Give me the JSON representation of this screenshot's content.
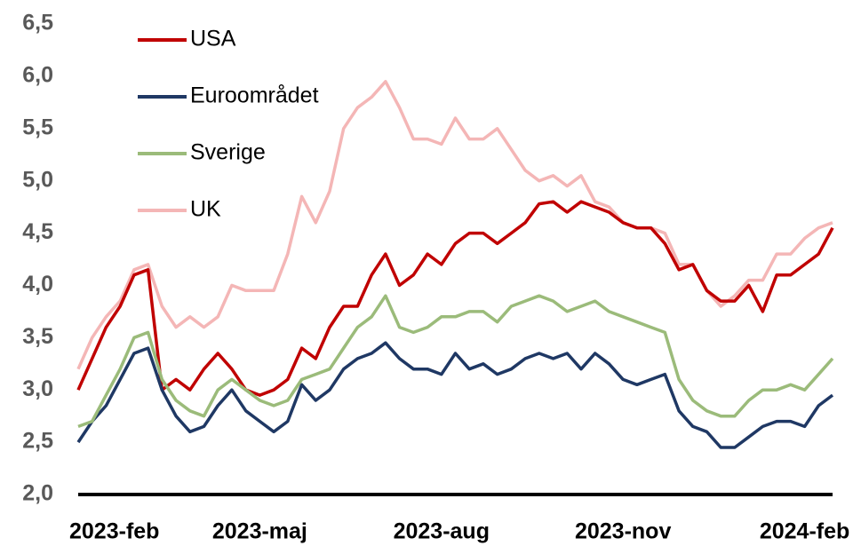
{
  "chart_data": {
    "type": "line",
    "categories": [
      "2023-feb",
      null,
      null,
      null,
      null,
      null,
      null,
      null,
      null,
      null,
      null,
      null,
      null,
      "2023-maj",
      null,
      null,
      null,
      null,
      null,
      null,
      null,
      null,
      null,
      null,
      null,
      null,
      "2023-aug",
      null,
      null,
      null,
      null,
      null,
      null,
      null,
      null,
      null,
      null,
      null,
      null,
      "2023-nov",
      null,
      null,
      null,
      null,
      null,
      null,
      null,
      null,
      null,
      null,
      null,
      null,
      "2024-feb",
      null,
      null
    ],
    "series": [
      {
        "name": "USA",
        "color": "#c00000",
        "values": [
          3.0,
          3.3,
          3.6,
          3.8,
          4.1,
          4.15,
          3.0,
          3.1,
          3.0,
          3.2,
          3.35,
          3.2,
          3.0,
          2.95,
          3.0,
          3.1,
          3.4,
          3.3,
          3.6,
          3.8,
          3.8,
          4.1,
          4.3,
          4.0,
          4.1,
          4.3,
          4.2,
          4.4,
          4.5,
          4.5,
          4.4,
          4.5,
          4.6,
          4.78,
          4.8,
          4.7,
          4.8,
          4.75,
          4.7,
          4.6,
          4.55,
          4.55,
          4.4,
          4.15,
          4.2,
          3.95,
          3.85,
          3.85,
          4.0,
          3.75,
          4.1,
          4.1,
          4.2,
          4.3,
          4.55
        ]
      },
      {
        "name": "Euroområdet",
        "color": "#1f3864",
        "values": [
          2.5,
          2.7,
          2.85,
          3.1,
          3.35,
          3.4,
          3.0,
          2.75,
          2.6,
          2.65,
          2.85,
          3.0,
          2.8,
          2.7,
          2.6,
          2.7,
          3.05,
          2.9,
          3.0,
          3.2,
          3.3,
          3.35,
          3.45,
          3.3,
          3.2,
          3.2,
          3.15,
          3.35,
          3.2,
          3.25,
          3.15,
          3.2,
          3.3,
          3.35,
          3.3,
          3.35,
          3.2,
          3.35,
          3.25,
          3.1,
          3.05,
          3.1,
          3.15,
          2.8,
          2.65,
          2.6,
          2.45,
          2.45,
          2.55,
          2.65,
          2.7,
          2.7,
          2.65,
          2.85,
          2.95
        ]
      },
      {
        "name": "Sverige",
        "color": "#9bbb7a",
        "values": [
          2.65,
          2.7,
          2.95,
          3.2,
          3.5,
          3.55,
          3.1,
          2.9,
          2.8,
          2.75,
          3.0,
          3.1,
          3.0,
          2.9,
          2.85,
          2.9,
          3.1,
          3.15,
          3.2,
          3.4,
          3.6,
          3.7,
          3.9,
          3.6,
          3.55,
          3.6,
          3.7,
          3.7,
          3.75,
          3.75,
          3.65,
          3.8,
          3.85,
          3.9,
          3.85,
          3.75,
          3.8,
          3.85,
          3.75,
          3.7,
          3.65,
          3.6,
          3.55,
          3.1,
          2.9,
          2.8,
          2.75,
          2.75,
          2.9,
          3.0,
          3.0,
          3.05,
          3.0,
          3.15,
          3.3
        ]
      },
      {
        "name": "UK",
        "color": "#f4b6b6",
        "values": [
          3.2,
          3.5,
          3.7,
          3.85,
          4.15,
          4.2,
          3.8,
          3.6,
          3.7,
          3.6,
          3.7,
          4.0,
          3.95,
          3.95,
          3.95,
          4.3,
          4.85,
          4.6,
          4.9,
          5.5,
          5.7,
          5.8,
          5.95,
          5.7,
          5.4,
          5.4,
          5.35,
          5.6,
          5.4,
          5.4,
          5.5,
          5.3,
          5.1,
          5.0,
          5.05,
          4.95,
          5.05,
          4.8,
          4.75,
          4.6,
          4.55,
          4.55,
          4.5,
          4.2,
          4.2,
          3.95,
          3.8,
          3.9,
          4.05,
          4.05,
          4.3,
          4.3,
          4.45,
          4.55,
          4.6
        ]
      }
    ],
    "ylim": [
      2.0,
      6.5
    ],
    "yticks": [
      {
        "value": 2.0,
        "label": "2,0"
      },
      {
        "value": 2.5,
        "label": "2,5"
      },
      {
        "value": 3.0,
        "label": "3,0"
      },
      {
        "value": 3.5,
        "label": "3,5"
      },
      {
        "value": 4.0,
        "label": "4,0"
      },
      {
        "value": 4.5,
        "label": "4,5"
      },
      {
        "value": 5.0,
        "label": "5,0"
      },
      {
        "value": 5.5,
        "label": "5,5"
      },
      {
        "value": 6.0,
        "label": "6,0"
      },
      {
        "value": 6.5,
        "label": "6,5"
      }
    ],
    "grid": false,
    "legend": "upper-left"
  }
}
